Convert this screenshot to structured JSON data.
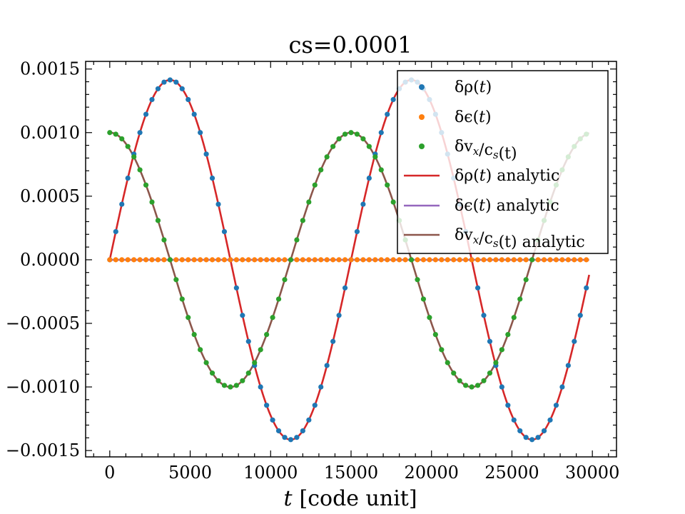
{
  "chart_data": {
    "type": "line",
    "title": "cs=0.0001",
    "xlabel": {
      "var": "t",
      "unit": "[code unit]"
    },
    "ylabel": "",
    "xlim": [
      -1500,
      31500
    ],
    "ylim": [
      -0.00155,
      0.00156
    ],
    "xticks": [
      0,
      5000,
      10000,
      15000,
      20000,
      25000,
      30000
    ],
    "xtick_labels": [
      "0",
      "5000",
      "10000",
      "15000",
      "20000",
      "25000",
      "30000"
    ],
    "yticks": [
      -0.0015,
      -0.001,
      -0.0005,
      0,
      0.0005,
      0.001,
      0.0015
    ],
    "ytick_labels": [
      "−0.0015",
      "−0.0010",
      "−0.0005",
      "0.0000",
      "0.0005",
      "0.0010",
      "0.0015"
    ],
    "grid": false,
    "legend_position": "top-right",
    "model": {
      "amplitude": 0.001,
      "sound_speed": 0.0001,
      "period": 15000,
      "x_start": 0,
      "x_end": 29800,
      "sample_step": 375
    },
    "series": [
      {
        "name": "δρ(t)",
        "label_parts": [
          "δρ(",
          "t",
          ")"
        ],
        "kind": "scatter",
        "color": "#1f77b4",
        "formula": "1.414e-3 * sin(2*pi*t/15000)"
      },
      {
        "name": "δϵ(t)",
        "label_parts": [
          "δϵ(",
          "t",
          ")"
        ],
        "kind": "scatter",
        "color": "#ff7f0e",
        "formula": "0"
      },
      {
        "name": "δv_x/c_s(t)",
        "label_parts": [
          "δv",
          "x",
          "/c",
          "s",
          "(t)"
        ],
        "kind": "scatter",
        "color": "#2ca02c",
        "formula": "1.0e-3 * cos(2*pi*t/15000)"
      },
      {
        "name": "δρ(t) analytic",
        "label_parts": [
          "δρ(",
          "t",
          ")",
          " analytic"
        ],
        "kind": "line",
        "color": "#d62728",
        "formula": "1.414e-3 * sin(2*pi*t/15000)"
      },
      {
        "name": "δϵ(t) analytic",
        "label_parts": [
          "δϵ(",
          "t",
          ")",
          " analytic"
        ],
        "kind": "line",
        "color": "#9467bd",
        "formula": "0"
      },
      {
        "name": "δv_x/c_s(t) analytic",
        "label_parts": [
          "δv",
          "x",
          "/c",
          "s",
          "(t)",
          " analytic"
        ],
        "kind": "line",
        "color": "#8c564b",
        "formula": "1.0e-3 * cos(2*pi*t/15000)"
      }
    ]
  }
}
